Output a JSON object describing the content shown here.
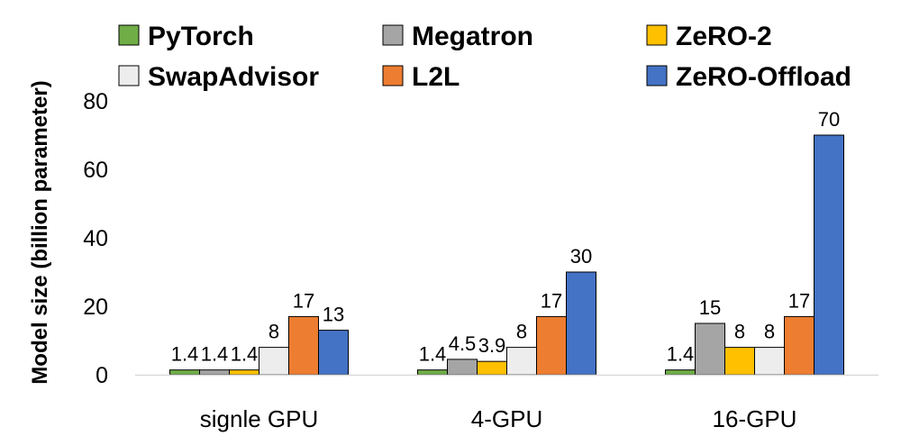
{
  "chart_data": {
    "type": "bar",
    "categories": [
      "signle GPU",
      "4-GPU",
      "16-GPU"
    ],
    "ylabel": "Model size (billion parameter)",
    "ylim": [
      0,
      80
    ],
    "yticks": [
      0,
      20,
      40,
      60,
      80
    ],
    "grid": false,
    "legend_position": "top",
    "series": [
      {
        "name": "PyTorch",
        "color": "#70ad47",
        "values": [
          1.4,
          1.4,
          1.4
        ]
      },
      {
        "name": "Megatron",
        "color": "#a5a5a5",
        "values": [
          1.4,
          4.5,
          15
        ]
      },
      {
        "name": "ZeRO-2",
        "color": "#ffc000",
        "values": [
          1.4,
          3.9,
          8
        ]
      },
      {
        "name": "SwapAdvisor",
        "color": "#ededed",
        "values": [
          8,
          8,
          8
        ]
      },
      {
        "name": "L2L",
        "color": "#ed7d31",
        "values": [
          17,
          17,
          17
        ]
      },
      {
        "name": "ZeRO-Offload",
        "color": "#4472c4",
        "values": [
          13,
          30,
          70
        ]
      }
    ],
    "data_labels": [
      [
        "1.4",
        "1.4",
        "1.4",
        "8",
        "17",
        "13"
      ],
      [
        "1.4",
        "4.5",
        "3.9",
        "8",
        "17",
        "30"
      ],
      [
        "1.4",
        "15",
        "8",
        "8",
        "17",
        "70"
      ]
    ]
  }
}
